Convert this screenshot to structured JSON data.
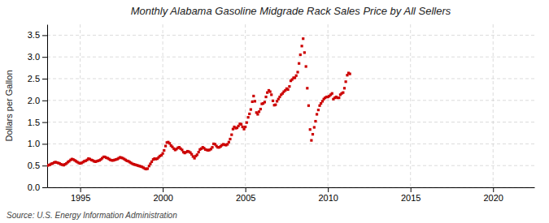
{
  "chart_data": {
    "type": "scatter",
    "title": "Monthly Alabama Gasoline Midgrade Rack Sales Price by All Sellers",
    "ylabel": "Dollars per Gallon",
    "annotations": [
      "Source: U.S. Energy Information Administration"
    ],
    "color": "#CC0000",
    "marker": "square",
    "grid": true,
    "xlim": [
      1993.0,
      2022.5
    ],
    "ylim": [
      0.0,
      3.75
    ],
    "xticks": [
      1995,
      2000,
      2005,
      2010,
      2015,
      2020
    ],
    "yticks": [
      {
        "value": 0.0,
        "label": "0.0"
      },
      0.5,
      {
        "value": 1.0,
        "label": "1.0"
      },
      1.5,
      {
        "value": 2.0,
        "label": "2.0"
      },
      2.5,
      {
        "value": 3.0,
        "label": "3.0"
      },
      3.5
    ],
    "x": [
      1993.0,
      1993.08,
      1993.17,
      1993.25,
      1993.33,
      1993.42,
      1993.5,
      1993.58,
      1993.67,
      1993.75,
      1993.83,
      1993.92,
      1994.0,
      1994.08,
      1994.17,
      1994.25,
      1994.33,
      1994.42,
      1994.5,
      1994.58,
      1994.67,
      1994.75,
      1994.83,
      1994.92,
      1995.0,
      1995.08,
      1995.17,
      1995.25,
      1995.33,
      1995.42,
      1995.5,
      1995.58,
      1995.67,
      1995.75,
      1995.83,
      1995.92,
      1996.0,
      1996.08,
      1996.17,
      1996.25,
      1996.33,
      1996.42,
      1996.5,
      1996.58,
      1996.67,
      1996.75,
      1996.83,
      1996.92,
      1997.0,
      1997.08,
      1997.17,
      1997.25,
      1997.33,
      1997.42,
      1997.5,
      1997.58,
      1997.67,
      1997.75,
      1997.83,
      1997.92,
      1998.0,
      1998.08,
      1998.17,
      1998.25,
      1998.33,
      1998.42,
      1998.5,
      1998.58,
      1998.67,
      1998.75,
      1998.83,
      1998.92,
      1999.0,
      1999.08,
      1999.17,
      1999.25,
      1999.33,
      1999.42,
      1999.5,
      1999.58,
      1999.67,
      1999.75,
      1999.83,
      1999.92,
      2000.0,
      2000.08,
      2000.17,
      2000.25,
      2000.33,
      2000.42,
      2000.5,
      2000.58,
      2000.67,
      2000.75,
      2000.83,
      2000.92,
      2001.0,
      2001.08,
      2001.17,
      2001.25,
      2001.33,
      2001.42,
      2001.5,
      2001.58,
      2001.67,
      2001.75,
      2001.83,
      2001.92,
      2002.0,
      2002.08,
      2002.17,
      2002.25,
      2002.33,
      2002.42,
      2002.5,
      2002.58,
      2002.67,
      2002.75,
      2002.83,
      2002.92,
      2003.0,
      2003.08,
      2003.17,
      2003.25,
      2003.33,
      2003.42,
      2003.5,
      2003.58,
      2003.67,
      2003.75,
      2003.83,
      2003.92,
      2004.0,
      2004.08,
      2004.17,
      2004.25,
      2004.33,
      2004.42,
      2004.5,
      2004.58,
      2004.67,
      2004.75,
      2004.83,
      2004.92,
      2005.0,
      2005.08,
      2005.17,
      2005.25,
      2005.33,
      2005.42,
      2005.5,
      2005.58,
      2005.67,
      2005.75,
      2005.83,
      2005.92,
      2006.0,
      2006.08,
      2006.17,
      2006.25,
      2006.33,
      2006.42,
      2006.5,
      2006.58,
      2006.67,
      2006.75,
      2006.83,
      2006.92,
      2007.0,
      2007.08,
      2007.17,
      2007.25,
      2007.33,
      2007.42,
      2007.5,
      2007.58,
      2007.67,
      2007.75,
      2007.83,
      2007.92,
      2008.0,
      2008.08,
      2008.17,
      2008.25,
      2008.33,
      2008.42,
      2008.5,
      2008.58,
      2008.67,
      2008.75,
      2008.83,
      2008.92,
      2009.0,
      2009.08,
      2009.17,
      2009.25,
      2009.33,
      2009.42,
      2009.5,
      2009.58,
      2009.67,
      2009.75,
      2009.83,
      2009.92,
      2010.0,
      2010.08,
      2010.17,
      2010.25,
      2010.33,
      2010.42,
      2010.5,
      2010.58,
      2010.67,
      2010.75,
      2010.83,
      2010.92,
      2011.0,
      2011.08,
      2011.17,
      2011.25,
      2011.33
    ],
    "values": [
      0.5,
      0.51,
      0.52,
      0.54,
      0.55,
      0.57,
      0.58,
      0.57,
      0.56,
      0.55,
      0.53,
      0.52,
      0.51,
      0.53,
      0.55,
      0.58,
      0.6,
      0.63,
      0.65,
      0.64,
      0.62,
      0.6,
      0.58,
      0.56,
      0.55,
      0.56,
      0.58,
      0.6,
      0.61,
      0.63,
      0.66,
      0.65,
      0.63,
      0.62,
      0.6,
      0.59,
      0.6,
      0.61,
      0.62,
      0.64,
      0.67,
      0.7,
      0.7,
      0.68,
      0.67,
      0.65,
      0.63,
      0.62,
      0.62,
      0.63,
      0.64,
      0.65,
      0.67,
      0.69,
      0.68,
      0.67,
      0.65,
      0.63,
      0.61,
      0.6,
      0.58,
      0.56,
      0.54,
      0.53,
      0.52,
      0.51,
      0.5,
      0.49,
      0.48,
      0.47,
      0.45,
      0.43,
      0.42,
      0.43,
      0.49,
      0.54,
      0.59,
      0.64,
      0.66,
      0.65,
      0.66,
      0.69,
      0.72,
      0.74,
      0.78,
      0.85,
      0.95,
      1.03,
      1.04,
      1.01,
      0.96,
      0.93,
      0.89,
      0.86,
      0.88,
      0.91,
      0.92,
      0.89,
      0.86,
      0.81,
      0.79,
      0.81,
      0.83,
      0.82,
      0.8,
      0.76,
      0.71,
      0.67,
      0.72,
      0.75,
      0.81,
      0.87,
      0.89,
      0.92,
      0.9,
      0.87,
      0.86,
      0.85,
      0.86,
      0.88,
      0.92,
      1.0,
      0.99,
      0.95,
      0.92,
      0.92,
      0.94,
      0.97,
      0.99,
      0.98,
      0.97,
      0.99,
      1.04,
      1.11,
      1.21,
      1.34,
      1.39,
      1.36,
      1.37,
      1.41,
      1.46,
      1.45,
      1.39,
      1.34,
      1.39,
      1.49,
      1.61,
      1.69,
      1.79,
      1.97,
      2.1,
      1.98,
      1.72,
      1.68,
      1.74,
      1.8,
      1.92,
      1.93,
      1.96,
      2.08,
      2.18,
      2.23,
      2.2,
      2.13,
      1.99,
      1.89,
      1.9,
      1.98,
      2.03,
      2.08,
      2.13,
      2.16,
      2.2,
      2.23,
      2.27,
      2.25,
      2.32,
      2.45,
      2.48,
      2.52,
      2.52,
      2.57,
      2.65,
      2.85,
      3.05,
      3.25,
      3.42,
      3.1,
      2.78,
      2.28,
      1.88,
      1.33,
      1.08,
      1.22,
      1.38,
      1.52,
      1.68,
      1.78,
      1.88,
      1.93,
      1.98,
      2.03,
      2.06,
      2.08,
      2.08,
      2.1,
      2.13,
      2.16,
      2.03,
      2.06,
      2.08,
      2.06,
      2.06,
      2.13,
      2.16,
      2.18,
      2.28,
      2.43,
      2.58,
      2.63,
      2.61
    ]
  }
}
